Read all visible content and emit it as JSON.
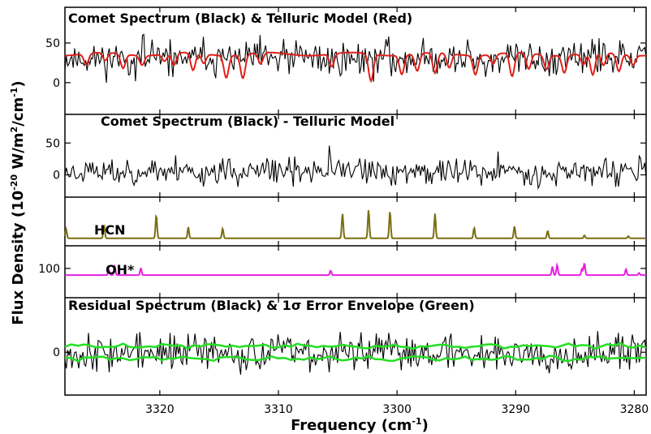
{
  "chart_data": {
    "type": "line",
    "xlabel": "Frequency (cm",
    "xlabel_sup": "-1",
    "xlabel_end": ")",
    "ylabel_parts": [
      "Flux Density (10",
      "-20",
      " W/m",
      "2",
      "/cm",
      "-1",
      ")"
    ],
    "x_range": [
      3328.0,
      3279.0
    ],
    "x_ticks": [
      3320,
      3310,
      3300,
      3290,
      3280
    ],
    "x_tick_labels": [
      "3320",
      "3310",
      "3300",
      "3290",
      "3280"
    ],
    "grid": false,
    "panels": [
      {
        "id": "panel1",
        "title": "Comet Spectrum (Black) & Telluric Model (Red)",
        "y_range": [
          -40,
          95
        ],
        "y_ticks": [
          0,
          50
        ],
        "y_tick_labels": [
          "0",
          "50"
        ],
        "series": [
          {
            "kind": "noise",
            "color": "#000000",
            "base": 30,
            "amp": 16,
            "seed": 11
          },
          {
            "kind": "telluric",
            "color": "#e0201a",
            "base": 36,
            "lines": [
              {
                "x": 3326.2,
                "depth": 14
              },
              {
                "x": 3324.6,
                "depth": 10
              },
              {
                "x": 3323.1,
                "depth": 18
              },
              {
                "x": 3321.5,
                "depth": 12
              },
              {
                "x": 3319.6,
                "depth": 9
              },
              {
                "x": 3318.8,
                "depth": 15
              },
              {
                "x": 3317.2,
                "depth": 22
              },
              {
                "x": 3316.3,
                "depth": 12
              },
              {
                "x": 3314.4,
                "depth": 28
              },
              {
                "x": 3313.0,
                "depth": 30
              },
              {
                "x": 3311.5,
                "depth": 14
              },
              {
                "x": 3305.5,
                "depth": 16
              },
              {
                "x": 3302.2,
                "depth": 34
              },
              {
                "x": 3299.6,
                "depth": 24
              },
              {
                "x": 3298.3,
                "depth": 22
              },
              {
                "x": 3296.8,
                "depth": 26
              },
              {
                "x": 3295.6,
                "depth": 18
              },
              {
                "x": 3293.4,
                "depth": 24
              },
              {
                "x": 3291.9,
                "depth": 12
              },
              {
                "x": 3290.3,
                "depth": 30
              },
              {
                "x": 3288.9,
                "depth": 20
              },
              {
                "x": 3287.4,
                "depth": 18
              },
              {
                "x": 3285.9,
                "depth": 22
              },
              {
                "x": 3284.3,
                "depth": 14
              },
              {
                "x": 3283.5,
                "depth": 28
              },
              {
                "x": 3282.6,
                "depth": 16
              },
              {
                "x": 3281.3,
                "depth": 22
              },
              {
                "x": 3280.1,
                "depth": 12
              }
            ]
          }
        ]
      },
      {
        "id": "panel2",
        "title": "Comet Spectrum (Black) - Telluric Model",
        "y_range": [
          -35,
          95
        ],
        "y_ticks": [
          0,
          50
        ],
        "y_tick_labels": [
          "0",
          "50"
        ],
        "series": [
          {
            "kind": "noise",
            "color": "#000000",
            "base": 5,
            "amp": 15,
            "seed": 23
          }
        ]
      },
      {
        "id": "panel3",
        "label": "HCN",
        "y_range": [
          -10,
          55
        ],
        "y_ticks": [],
        "series": [
          {
            "kind": "peaks",
            "color": "#7a6e10",
            "base": 0,
            "peaks": [
              {
                "x": 3327.9,
                "h": 12
              },
              {
                "x": 3324.7,
                "h": 17
              },
              {
                "x": 3320.3,
                "h": 31
              },
              {
                "x": 3317.6,
                "h": 15
              },
              {
                "x": 3314.7,
                "h": 13
              },
              {
                "x": 3304.6,
                "h": 33
              },
              {
                "x": 3302.4,
                "h": 38
              },
              {
                "x": 3300.6,
                "h": 36
              },
              {
                "x": 3296.8,
                "h": 33
              },
              {
                "x": 3293.5,
                "h": 14
              },
              {
                "x": 3290.1,
                "h": 16
              },
              {
                "x": 3287.3,
                "h": 10
              },
              {
                "x": 3284.2,
                "h": 4
              },
              {
                "x": 3280.5,
                "h": 3
              }
            ]
          }
        ]
      },
      {
        "id": "panel4",
        "label": "OH*",
        "y_range": [
          -10,
          185
        ],
        "y_ticks": [
          100
        ],
        "y_tick_labels": [
          "100"
        ],
        "series": [
          {
            "kind": "peaks",
            "color": "#e81fe0",
            "base": 75,
            "peaks": [
              {
                "x": 3324.3,
                "h": 20
              },
              {
                "x": 3323.8,
                "h": 32
              },
              {
                "x": 3321.6,
                "h": 26
              },
              {
                "x": 3305.6,
                "h": 17
              },
              {
                "x": 3286.9,
                "h": 32
              },
              {
                "x": 3286.5,
                "h": 38
              },
              {
                "x": 3284.4,
                "h": 24
              },
              {
                "x": 3284.2,
                "h": 45
              },
              {
                "x": 3280.7,
                "h": 22
              },
              {
                "x": 3279.6,
                "h": 8
              }
            ]
          }
        ]
      },
      {
        "id": "panel5",
        "title": "Residual Spectrum (Black) & 1σ Error Envelope (Green)",
        "y_range": [
          -55,
          70
        ],
        "y_ticks": [
          0
        ],
        "y_tick_labels": [
          "0"
        ],
        "series": [
          {
            "kind": "noise",
            "color": "#000000",
            "base": 0,
            "amp": 17,
            "seed": 37
          },
          {
            "kind": "envelope",
            "color": "#22e022",
            "base": 8,
            "amp": 3,
            "sign": 1,
            "seed": 5
          },
          {
            "kind": "envelope",
            "color": "#22e022",
            "base": -8,
            "amp": 3,
            "sign": -1,
            "seed": 9
          }
        ]
      }
    ]
  }
}
